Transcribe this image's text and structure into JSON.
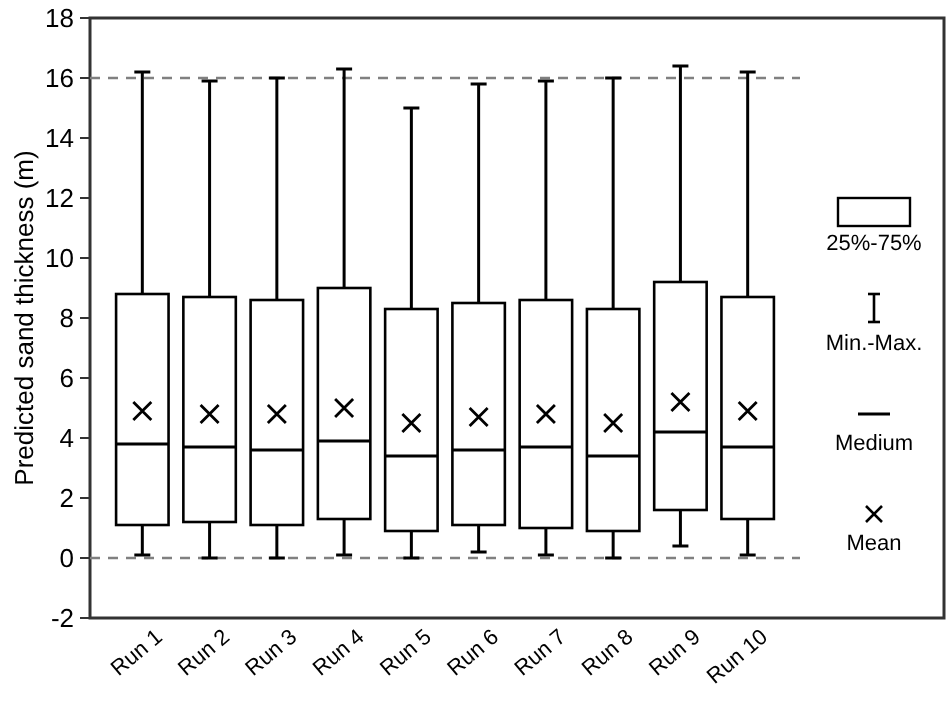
{
  "chart_data": {
    "type": "box",
    "ylabel": "Predicted sand thickness (m)",
    "categories": [
      "Run 1",
      "Run 2",
      "Run 3",
      "Run 4",
      "Run 5",
      "Run 6",
      "Run 7",
      "Run 8",
      "Run 9",
      "Run 10"
    ],
    "boxes": [
      {
        "low": 0.1,
        "q1": 1.1,
        "median": 3.8,
        "q3": 8.8,
        "high": 16.2,
        "mean": 4.9
      },
      {
        "low": 0,
        "q1": 1.2,
        "median": 3.7,
        "q3": 8.7,
        "high": 15.9,
        "mean": 4.8
      },
      {
        "low": 0,
        "q1": 1.1,
        "median": 3.6,
        "q3": 8.6,
        "high": 16.0,
        "mean": 4.8
      },
      {
        "low": 0.1,
        "q1": 1.3,
        "median": 3.9,
        "q3": 9.0,
        "high": 16.3,
        "mean": 5.0
      },
      {
        "low": 0,
        "q1": 0.9,
        "median": 3.4,
        "q3": 8.3,
        "high": 15.0,
        "mean": 4.5
      },
      {
        "low": 0.2,
        "q1": 1.1,
        "median": 3.6,
        "q3": 8.5,
        "high": 15.8,
        "mean": 4.7
      },
      {
        "low": 0.1,
        "q1": 1.0,
        "median": 3.7,
        "q3": 8.6,
        "high": 15.9,
        "mean": 4.8
      },
      {
        "low": 0,
        "q1": 0.9,
        "median": 3.4,
        "q3": 8.3,
        "high": 16.0,
        "mean": 4.5
      },
      {
        "low": 0.4,
        "q1": 1.6,
        "median": 4.2,
        "q3": 9.2,
        "high": 16.4,
        "mean": 5.2
      },
      {
        "low": 0.1,
        "q1": 1.3,
        "median": 3.7,
        "q3": 8.7,
        "high": 16.2,
        "mean": 4.9
      }
    ],
    "color": "#000000",
    "ylim": [
      -2,
      18
    ],
    "yticks": [
      -2,
      0,
      2,
      4,
      6,
      8,
      10,
      12,
      14,
      16,
      18
    ],
    "ref_lines": [
      {
        "axis": "y",
        "value": 0,
        "color": "#808080",
        "line_style": "dashed"
      },
      {
        "axis": "y",
        "value": 16,
        "color": "#808080",
        "line_style": "dashed"
      }
    ],
    "annotations": [
      "25%-75%",
      "Min.-Max.",
      "Medium",
      "Mean"
    ]
  }
}
